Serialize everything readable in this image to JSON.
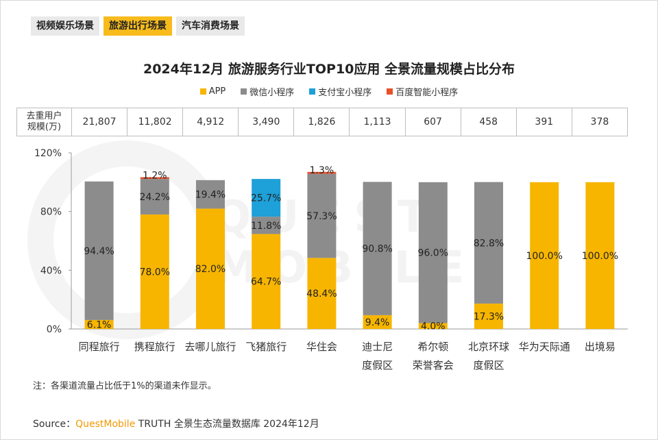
{
  "tabs": [
    {
      "label": "视频娱乐场景",
      "active": false
    },
    {
      "label": "旅游出行场景",
      "active": true
    },
    {
      "label": "汽车消费场景",
      "active": false
    }
  ],
  "watermark": "QUEST MOBILE",
  "user_scale": {
    "header": "去重用户规模(万)",
    "header_line1": "去重用户",
    "header_line2": "规模(万)",
    "values": [
      "21,807",
      "11,802",
      "4,912",
      "3,490",
      "1,826",
      "1,113",
      "607",
      "458",
      "391",
      "378"
    ]
  },
  "note": "注：各渠道流量占比低于1%的渠道未作显示。",
  "source": {
    "prefix": "Source：",
    "brand": "QuestMobile",
    "suffix": " TRUTH 全景生态流量数据库 2024年12月"
  },
  "chart_data": {
    "type": "bar",
    "stacked": true,
    "title": "2024年12月 旅游服务行业TOP10应用 全景流量规模占比分布",
    "categories": [
      "同程旅行",
      "携程旅行",
      "去哪儿旅行",
      "飞猪旅行",
      "华住会",
      "迪士尼度假区",
      "希尔顿荣誉客会",
      "北京环球度假区",
      "华为天际通",
      "出境易"
    ],
    "category_lines": [
      [
        "同程旅行"
      ],
      [
        "携程旅行"
      ],
      [
        "去哪儿旅行"
      ],
      [
        "飞猪旅行"
      ],
      [
        "华住会"
      ],
      [
        "迪士尼",
        "度假区"
      ],
      [
        "希尔顿",
        "荣誉客会"
      ],
      [
        "北京环球",
        "度假区"
      ],
      [
        "华为天际通"
      ],
      [
        "出境易"
      ]
    ],
    "series": [
      {
        "name": "APP",
        "color": "#f7b500",
        "values": [
          6.1,
          78.0,
          82.0,
          64.7,
          48.4,
          9.4,
          4.0,
          17.3,
          100.0,
          100.0
        ],
        "labels": [
          "6.1%",
          "78.0%",
          "82.0%",
          "64.7%",
          "48.4%",
          "9.4%",
          "4.0%",
          "17.3%",
          "100.0%",
          "100.0%"
        ]
      },
      {
        "name": "微信小程序",
        "color": "#8c8c8c",
        "values": [
          94.4,
          24.2,
          19.4,
          11.8,
          57.3,
          90.8,
          96.0,
          82.8,
          0,
          0
        ],
        "labels": [
          "94.4%",
          "24.2%",
          "19.4%",
          "11.8%",
          "57.3%",
          "90.8%",
          "96.0%",
          "82.8%",
          "",
          ""
        ]
      },
      {
        "name": "支付宝小程序",
        "color": "#1ea0d8",
        "values": [
          0,
          0,
          0,
          25.7,
          0,
          0,
          0,
          0,
          0,
          0
        ],
        "labels": [
          "",
          "",
          "",
          "25.7%",
          "",
          "",
          "",
          "",
          "",
          ""
        ]
      },
      {
        "name": "百度智能小程序",
        "color": "#e8502a",
        "values": [
          0,
          1.2,
          0,
          0,
          1.3,
          0,
          0,
          0,
          0,
          0
        ],
        "labels": [
          "",
          "1.2%",
          "",
          "",
          "1.3%",
          "",
          "",
          "",
          "",
          ""
        ]
      }
    ],
    "ylim": [
      0,
      120
    ],
    "yticks": [
      0,
      40,
      80,
      120
    ],
    "ytick_labels": [
      "0%",
      "40%",
      "80%",
      "120%"
    ],
    "xlabel": "",
    "ylabel": ""
  }
}
